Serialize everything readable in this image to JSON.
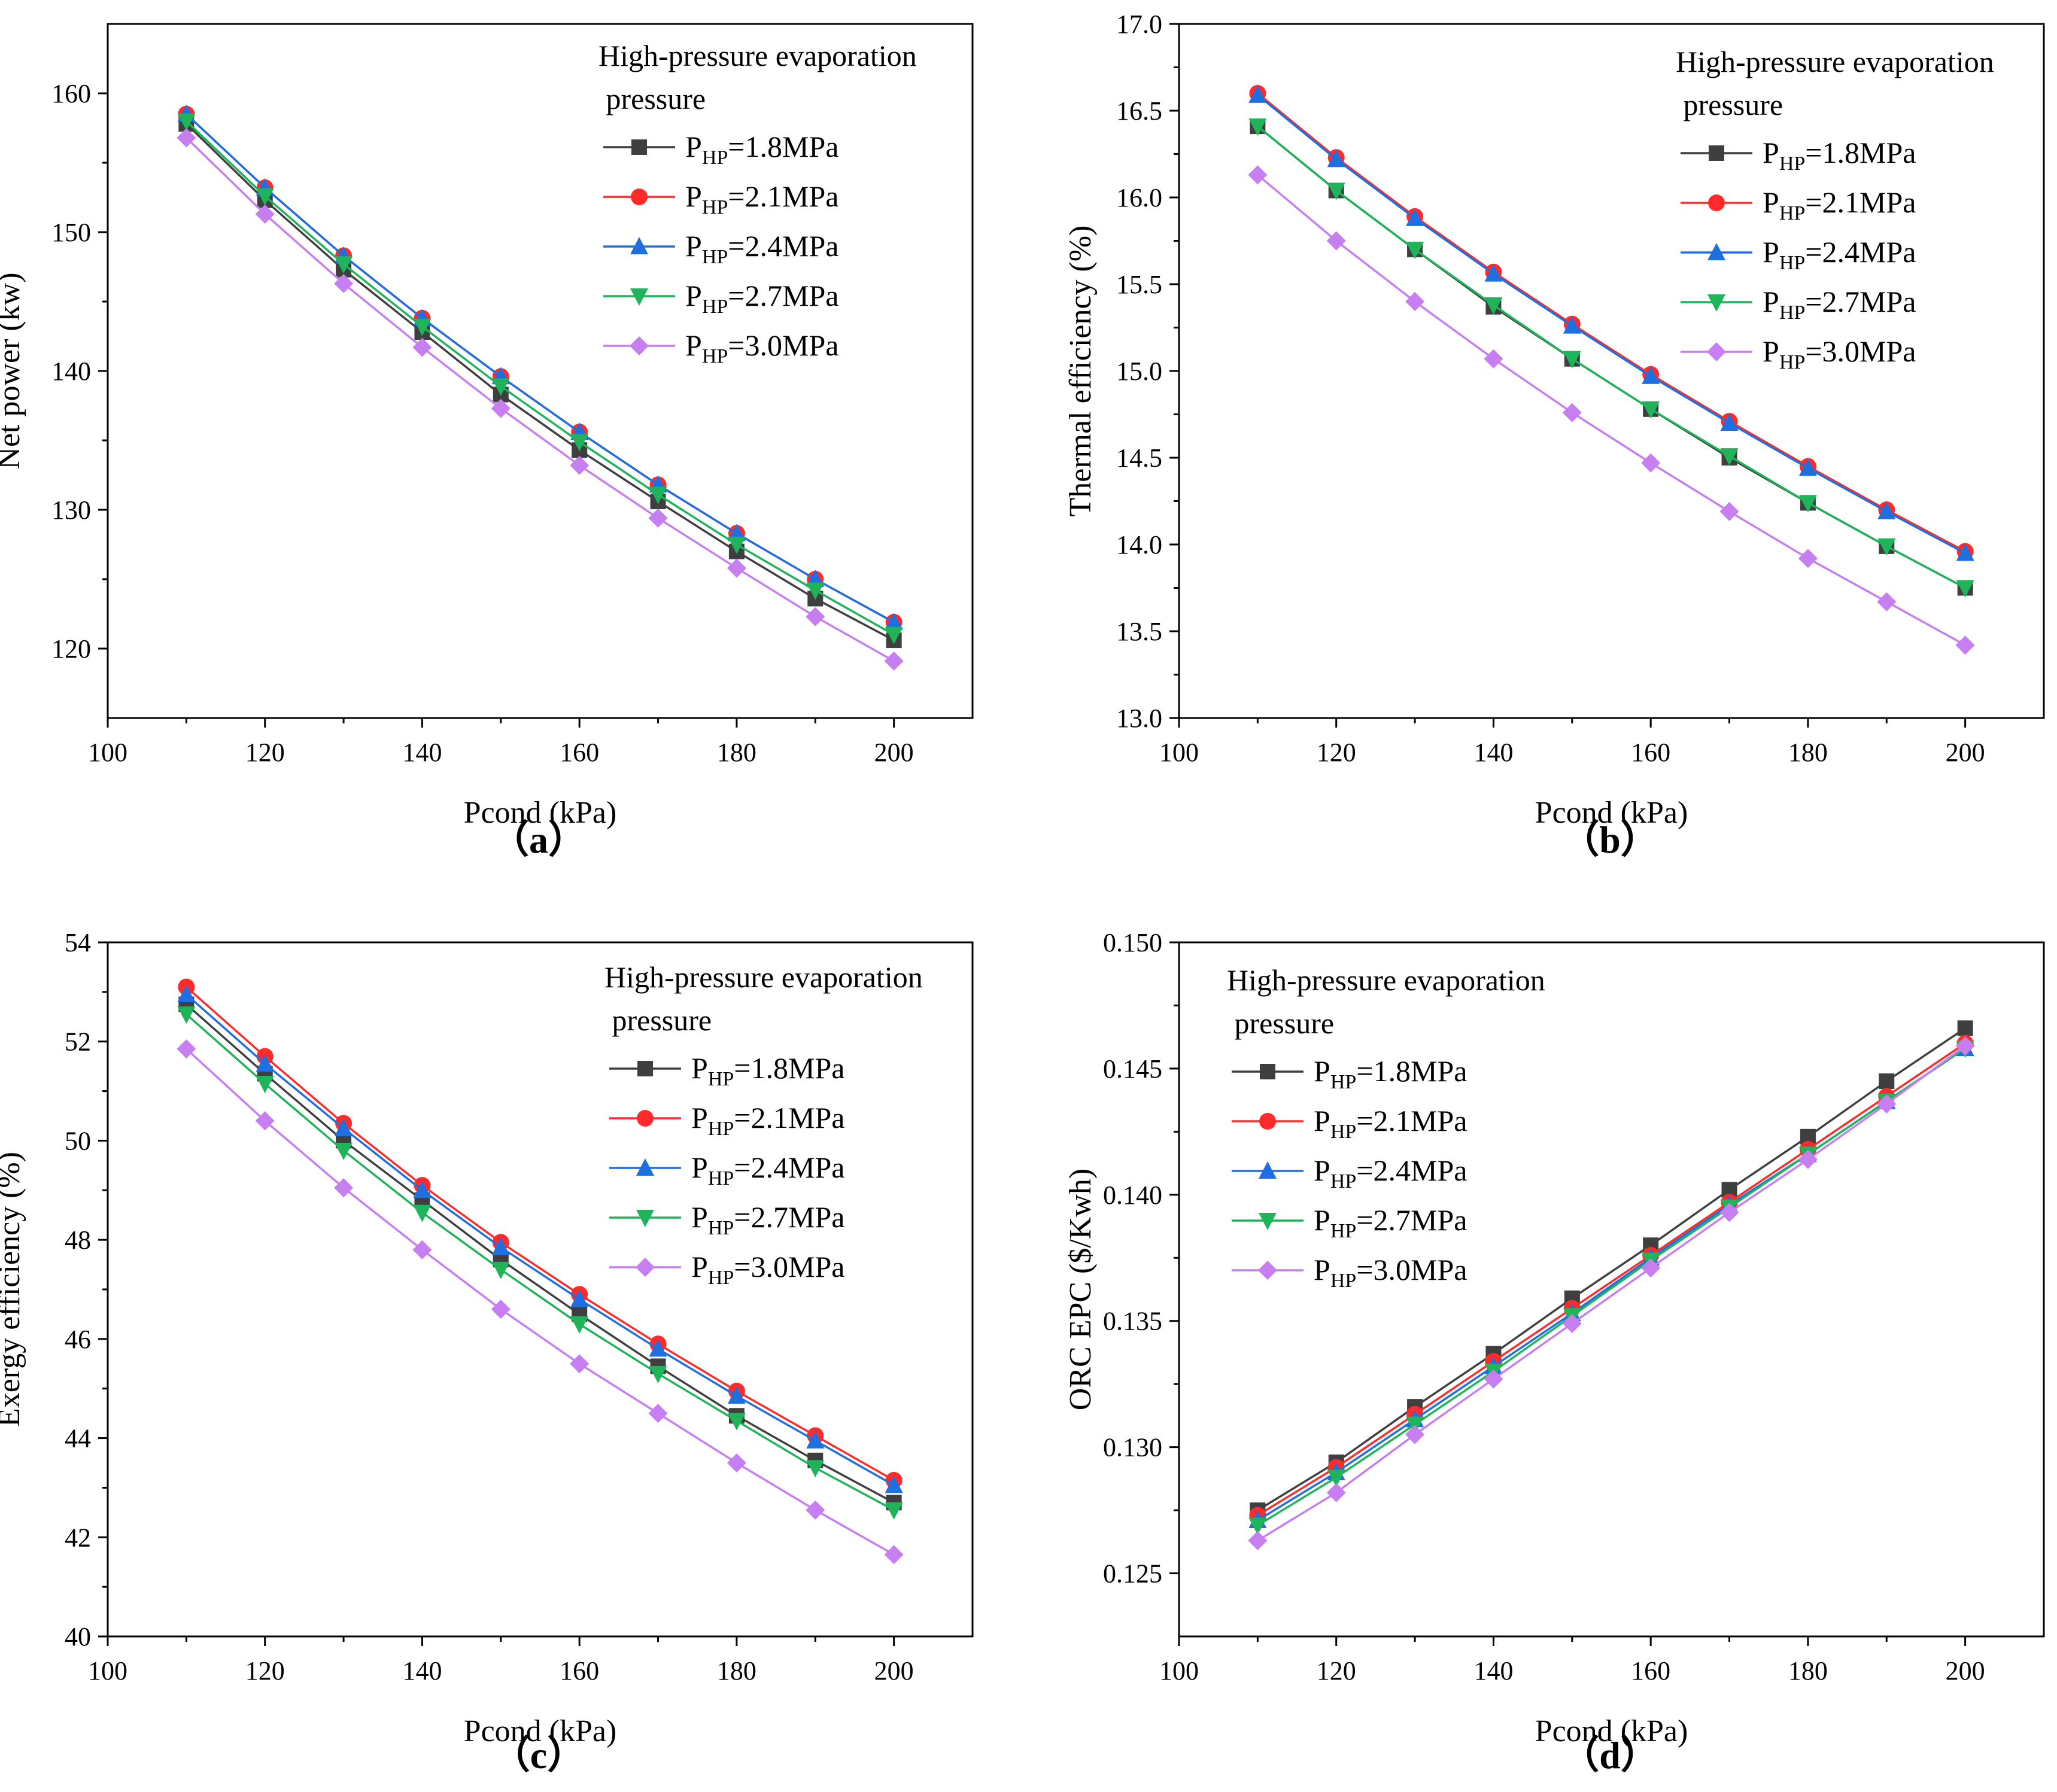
{
  "chart_data": [
    {
      "type": "line",
      "panel_label": "（a）",
      "xlabel": "Pcond (kPa)",
      "ylabel": "Net power (kw)",
      "xlim": [
        100,
        210
      ],
      "ylim": [
        115,
        165
      ],
      "xticks": [
        100,
        120,
        140,
        160,
        180,
        200
      ],
      "yticks": [
        120,
        130,
        140,
        150,
        160
      ],
      "ytick_labels": [
        "120",
        "130",
        "140",
        "150",
        "160"
      ],
      "legend_title": [
        "High-pressure evaporation",
        " pressure"
      ],
      "x": [
        110,
        120,
        130,
        140,
        150,
        160,
        170,
        180,
        190,
        200
      ],
      "series": [
        {
          "name": "PHP=1.8MPa",
          "values": [
            157.8,
            152.3,
            147.3,
            142.8,
            138.3,
            134.3,
            130.6,
            127.0,
            123.6,
            120.6
          ]
        },
        {
          "name": "PHP=2.1MPa",
          "values": [
            158.5,
            153.2,
            148.3,
            143.8,
            139.6,
            135.6,
            131.8,
            128.3,
            125.0,
            121.9
          ]
        },
        {
          "name": "PHP=2.4MPa",
          "values": [
            158.5,
            153.2,
            148.3,
            143.8,
            139.6,
            135.6,
            131.8,
            128.3,
            125.0,
            121.9
          ]
        },
        {
          "name": "PHP=2.7MPa",
          "values": [
            158.0,
            152.6,
            147.7,
            143.2,
            138.9,
            134.9,
            131.1,
            127.5,
            124.2,
            121.0
          ]
        },
        {
          "name": "PHP=3.0MPa",
          "values": [
            156.8,
            151.3,
            146.3,
            141.7,
            137.3,
            133.2,
            129.4,
            125.8,
            122.3,
            119.1
          ]
        }
      ]
    },
    {
      "type": "line",
      "panel_label": "（b）",
      "xlabel": "Pcond (kPa)",
      "ylabel": "Thermal efficiency (%)",
      "xlim": [
        100,
        210
      ],
      "ylim": [
        13.0,
        17.0
      ],
      "xticks": [
        100,
        120,
        140,
        160,
        180,
        200
      ],
      "yticks": [
        13.0,
        13.5,
        14.0,
        14.5,
        15.0,
        15.5,
        16.0,
        16.5,
        17.0
      ],
      "ytick_labels": [
        "13.0",
        "13.5",
        "14.0",
        "14.5",
        "15.0",
        "15.5",
        "16.0",
        "16.5",
        "17.0"
      ],
      "legend_title": [
        "High-pressure evaporation",
        " pressure"
      ],
      "x": [
        110,
        120,
        130,
        140,
        150,
        160,
        170,
        180,
        190,
        200
      ],
      "series": [
        {
          "name": "PHP=1.8MPa",
          "values": [
            16.41,
            16.04,
            15.7,
            15.37,
            15.07,
            14.78,
            14.5,
            14.24,
            13.99,
            13.75
          ]
        },
        {
          "name": "PHP=2.1MPa",
          "values": [
            16.6,
            16.23,
            15.89,
            15.57,
            15.27,
            14.98,
            14.71,
            14.45,
            14.2,
            13.96
          ]
        },
        {
          "name": "PHP=2.4MPa",
          "values": [
            16.59,
            16.22,
            15.88,
            15.56,
            15.26,
            14.97,
            14.7,
            14.44,
            14.19,
            13.95
          ]
        },
        {
          "name": "PHP=2.7MPa",
          "values": [
            16.41,
            16.04,
            15.7,
            15.38,
            15.07,
            14.78,
            14.51,
            14.24,
            13.99,
            13.75
          ]
        },
        {
          "name": "PHP=3.0MPa",
          "values": [
            16.13,
            15.75,
            15.4,
            15.07,
            14.76,
            14.47,
            14.19,
            13.92,
            13.67,
            13.42
          ]
        }
      ]
    },
    {
      "type": "line",
      "panel_label": "（c）",
      "xlabel": "Pcond (kPa)",
      "ylabel": "Exergy efficiency (%)",
      "xlim": [
        100,
        210
      ],
      "ylim": [
        40,
        54
      ],
      "xticks": [
        100,
        120,
        140,
        160,
        180,
        200
      ],
      "yticks": [
        40,
        42,
        44,
        46,
        48,
        50,
        52,
        54
      ],
      "ytick_labels": [
        "40",
        "42",
        "44",
        "46",
        "48",
        "50",
        "52",
        "54"
      ],
      "legend_title": [
        "High-pressure evaporation",
        " pressure"
      ],
      "x": [
        110,
        120,
        130,
        140,
        150,
        160,
        170,
        180,
        190,
        200
      ],
      "series": [
        {
          "name": "PHP=1.8MPa",
          "values": [
            52.75,
            51.35,
            50.0,
            48.8,
            47.6,
            46.5,
            45.45,
            44.45,
            43.55,
            42.7
          ]
        },
        {
          "name": "PHP=2.1MPa",
          "values": [
            53.1,
            51.7,
            50.35,
            49.1,
            47.95,
            46.9,
            45.9,
            44.95,
            44.05,
            43.15
          ]
        },
        {
          "name": "PHP=2.4MPa",
          "values": [
            52.95,
            51.55,
            50.25,
            49.0,
            47.85,
            46.8,
            45.8,
            44.85,
            43.95,
            43.05
          ]
        },
        {
          "name": "PHP=2.7MPa",
          "values": [
            52.55,
            51.15,
            49.8,
            48.55,
            47.4,
            46.3,
            45.3,
            44.35,
            43.4,
            42.55
          ]
        },
        {
          "name": "PHP=3.0MPa",
          "values": [
            51.85,
            50.4,
            49.05,
            47.8,
            46.6,
            45.5,
            44.5,
            43.5,
            42.55,
            41.65
          ]
        }
      ]
    },
    {
      "type": "line",
      "panel_label": "（d）",
      "xlabel": "Pcond (kPa)",
      "ylabel": "ORC EPC ($/Kwh)",
      "xlim": [
        100,
        210
      ],
      "ylim": [
        0.1225,
        0.15
      ],
      "xticks": [
        100,
        120,
        140,
        160,
        180,
        200
      ],
      "yticks": [
        0.125,
        0.13,
        0.135,
        0.14,
        0.145,
        0.15
      ],
      "ytick_labels": [
        "0.125",
        "0.130",
        "0.135",
        "0.140",
        "0.145",
        "0.150"
      ],
      "legend_title": [
        "High-pressure evaporation",
        " pressure"
      ],
      "x": [
        110,
        120,
        130,
        140,
        150,
        160,
        170,
        180,
        190,
        200
      ],
      "series": [
        {
          "name": "PHP=1.8MPa",
          "values": [
            0.1275,
            0.1294,
            0.1316,
            0.1337,
            0.1359,
            0.138,
            0.1402,
            0.1423,
            0.1445,
            0.1466
          ]
        },
        {
          "name": "PHP=2.1MPa",
          "values": [
            0.1273,
            0.1292,
            0.1313,
            0.1334,
            0.1355,
            0.1376,
            0.1397,
            0.1418,
            0.1439,
            0.146
          ]
        },
        {
          "name": "PHP=2.4MPa",
          "values": [
            0.1271,
            0.129,
            0.1311,
            0.1332,
            0.1353,
            0.1375,
            0.1396,
            0.1416,
            0.1437,
            0.1458
          ]
        },
        {
          "name": "PHP=2.7MPa",
          "values": [
            0.1269,
            0.1288,
            0.1309,
            0.133,
            0.1352,
            0.1374,
            0.1395,
            0.1416,
            0.1437,
            0.1458
          ]
        },
        {
          "name": "PHP=3.0MPa",
          "values": [
            0.1263,
            0.1282,
            0.1305,
            0.1327,
            0.1349,
            0.1371,
            0.1393,
            0.1414,
            0.1436,
            0.1459
          ]
        }
      ]
    }
  ],
  "legend_items": [
    {
      "prefix": "P",
      "sub": "HP",
      "suffix": "=1.8MPa",
      "color": "#3f3f3f",
      "marker": "square"
    },
    {
      "prefix": "P",
      "sub": "HP",
      "suffix": "=2.1MPa",
      "color": "#ff2b2b",
      "marker": "circle"
    },
    {
      "prefix": "P",
      "sub": "HP",
      "suffix": "=2.4MPa",
      "color": "#1e6fe0",
      "marker": "triangle-up"
    },
    {
      "prefix": "P",
      "sub": "HP",
      "suffix": "=2.7MPa",
      "color": "#1fb35a",
      "marker": "triangle-down"
    },
    {
      "prefix": "P",
      "sub": "HP",
      "suffix": "=3.0MPa",
      "color": "#c77ef0",
      "marker": "diamond"
    }
  ]
}
